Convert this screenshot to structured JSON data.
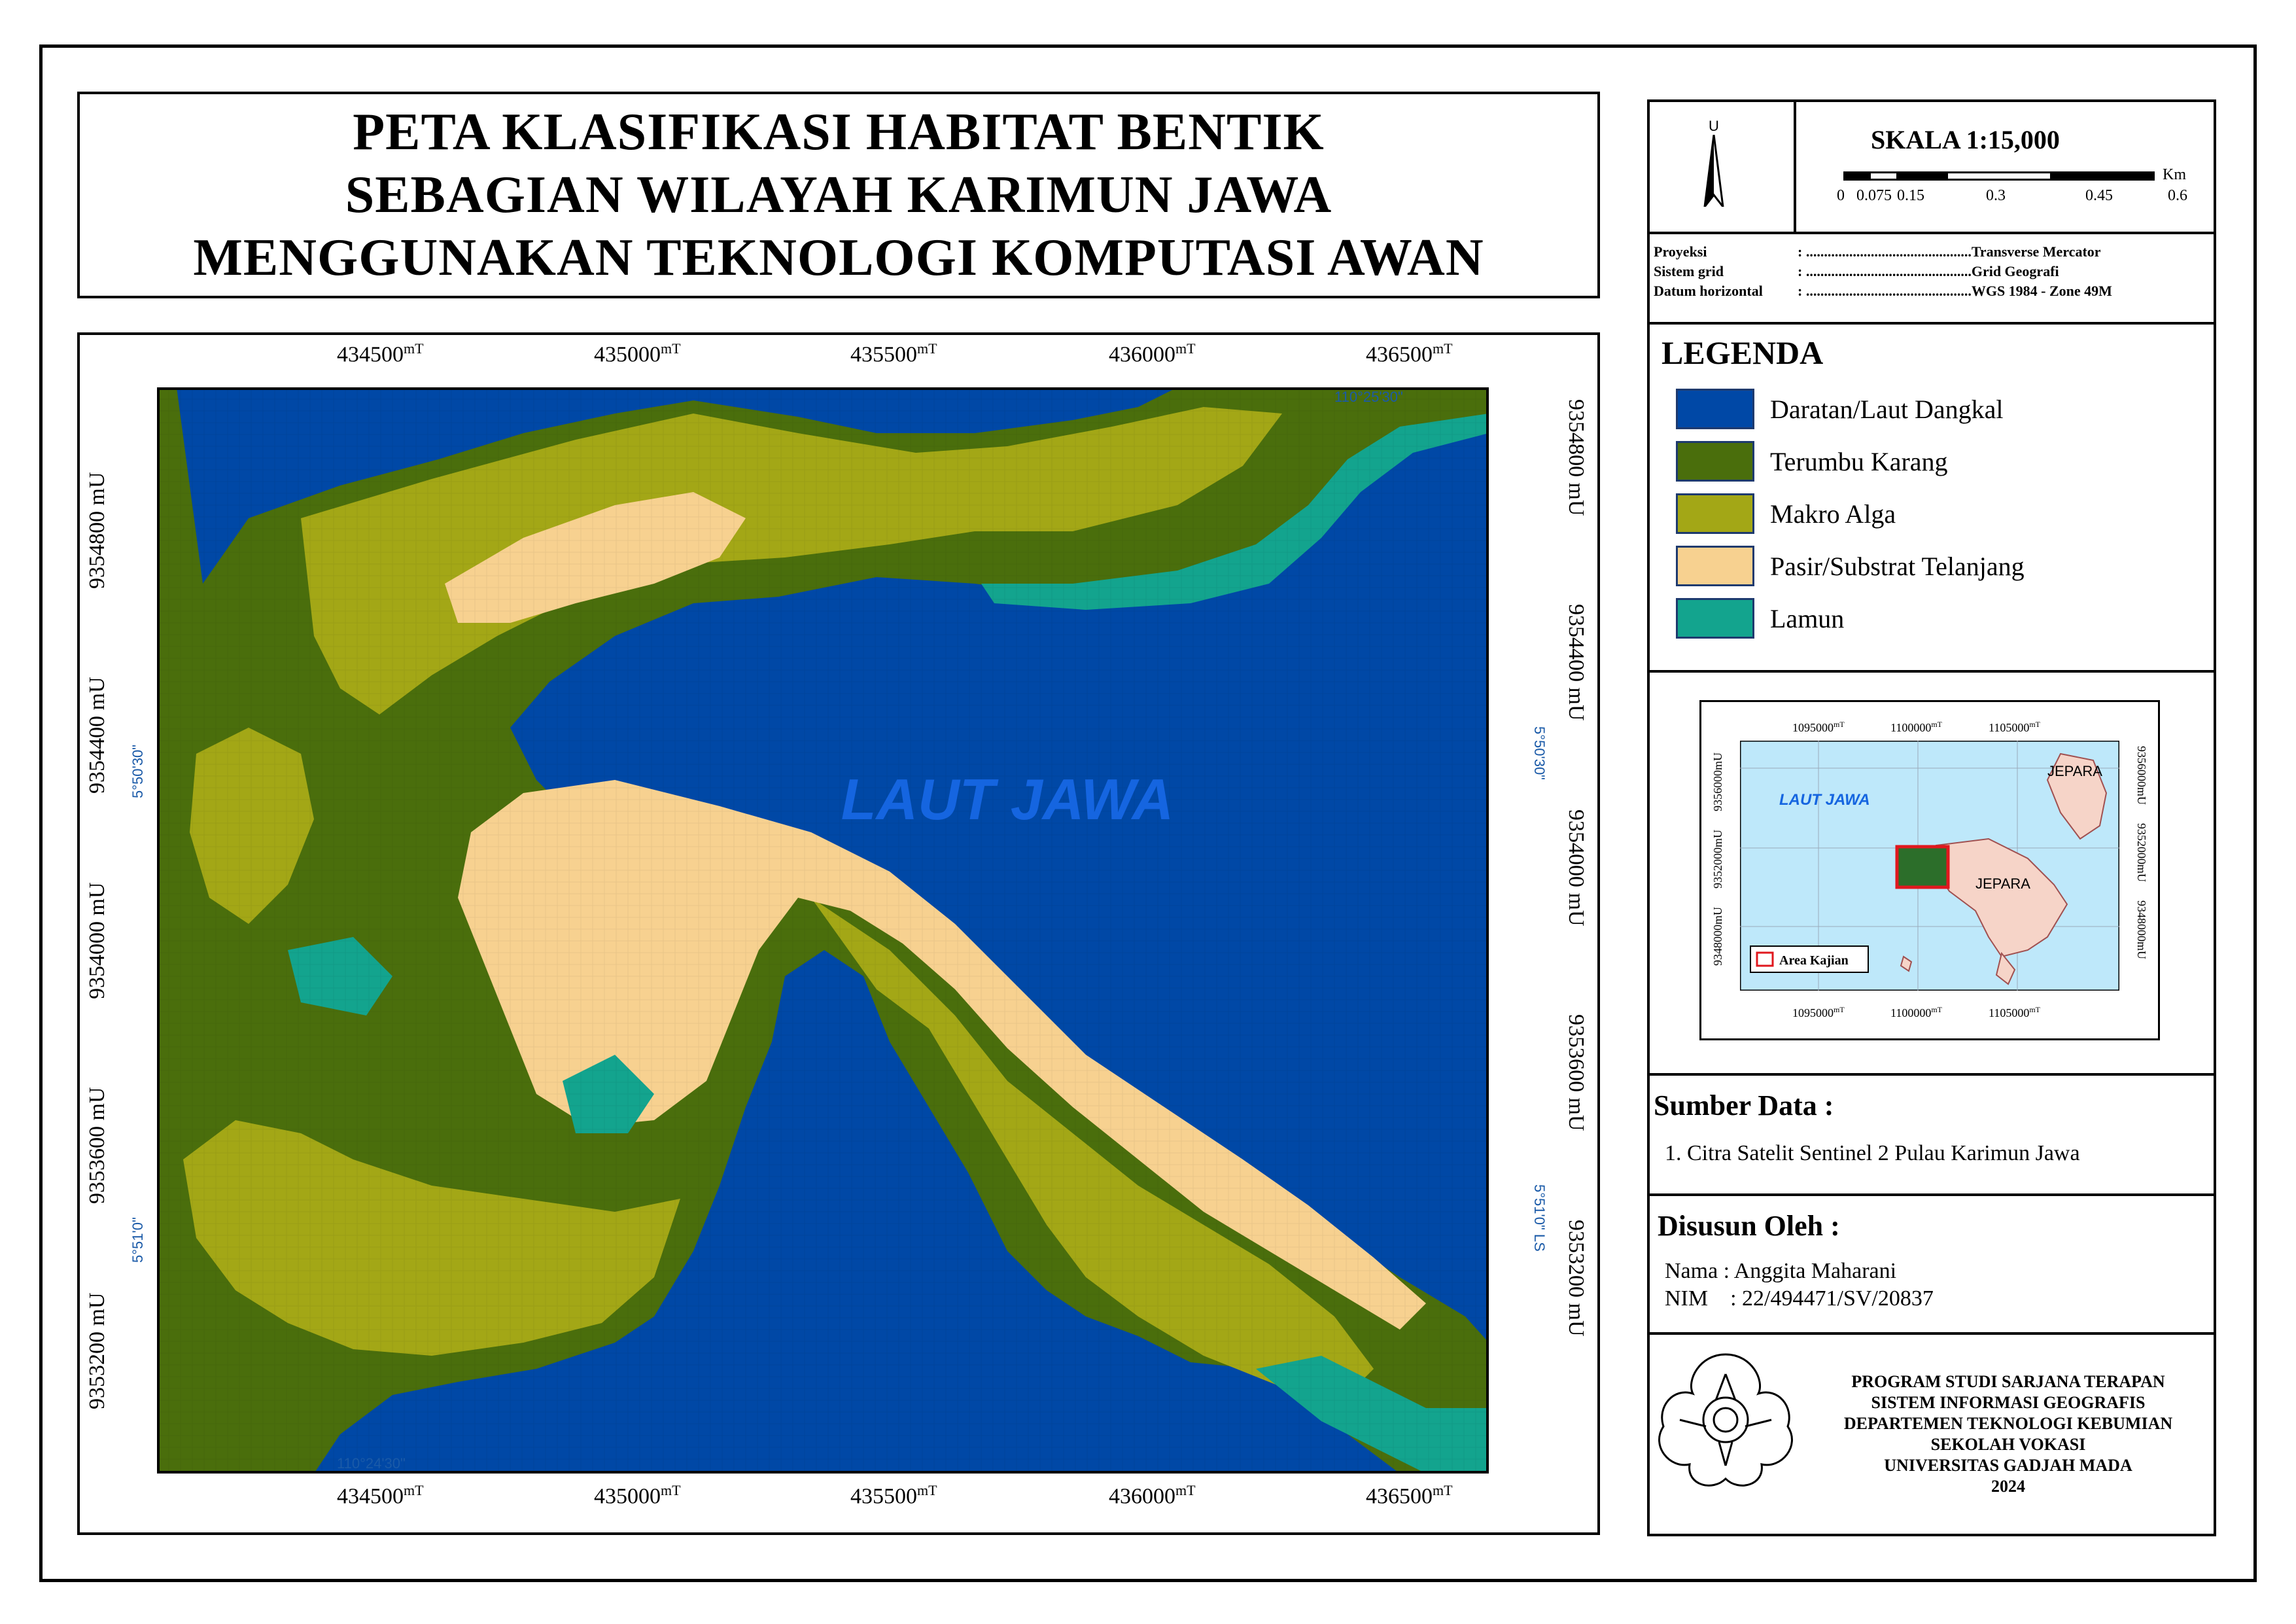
{
  "title": {
    "line1": "PETA KLASIFIKASI HABITAT BENTIK",
    "line2": "SEBAGIAN WILAYAH KARIMUN JAWA",
    "line3": "MENGGUNAKAN TEKNOLOGI KOMPUTASI AWAN"
  },
  "map": {
    "sea_label": "LAUT JAWA",
    "x_ticks": [
      "434500",
      "435000",
      "435500",
      "436000",
      "436500"
    ],
    "x_unit": "mT",
    "y_ticks": [
      "9354800",
      "9354400",
      "9354000",
      "9353600",
      "9353200"
    ],
    "y_unit": "mU",
    "geo_labels": {
      "top_right": "110°25'30\"",
      "bottom_left": "110°24'30\"",
      "left_upper": "5°50'30\"",
      "left_lower": "5°51'0\"",
      "right_upper": "5°50'30\"",
      "right_lower": "5°51'0\" LS"
    },
    "colors": {
      "sea": "#0048A6",
      "reef": "#4A6E0C",
      "algae": "#A3A716",
      "sand": "#F7D190",
      "seagrass": "#13A48E"
    }
  },
  "north_arrow": {
    "label": "U"
  },
  "scale": {
    "title": "SKALA  1:15,000",
    "unit": "Km",
    "ticks": [
      "0",
      "0.075",
      "0.15",
      "0.3",
      "0.45",
      "0.6"
    ]
  },
  "projection": {
    "rows": [
      {
        "label": "Proyeksi",
        "value": "Transverse Mercator"
      },
      {
        "label": "Sistem grid",
        "value": "Grid Geografi"
      },
      {
        "label": "Datum horizontal",
        "value": "WGS 1984 - Zone 49M"
      }
    ]
  },
  "legend": {
    "title": "LEGENDA",
    "items": [
      {
        "label": "Daratan/Laut Dangkal",
        "color": "#0048A6"
      },
      {
        "label": "Terumbu Karang",
        "color": "#4A6E0C"
      },
      {
        "label": "Makro Alga",
        "color": "#A3A716"
      },
      {
        "label": "Pasir/Substrat Telanjang",
        "color": "#F7D190"
      },
      {
        "label": "Lamun",
        "color": "#13A48E"
      }
    ]
  },
  "inset": {
    "x_ticks": [
      "1095000",
      "1100000",
      "1105000"
    ],
    "x_unit": "mT",
    "y_ticks": [
      "9356000",
      "9352000",
      "9348000"
    ],
    "y_unit": "mU",
    "sea_label": "LAUT JAWA",
    "place1": "JEPARA",
    "place2": "JEPARA",
    "legend_label": "Area Kajian",
    "sea_color": "#BEE8FA",
    "land_color": "#F6D4C8",
    "box_color": "#E0181E"
  },
  "source": {
    "title": "Sumber Data :",
    "items": [
      "1. Citra Satelit Sentinel 2 Pulau Karimun Jawa"
    ]
  },
  "author": {
    "title": "Disusun Oleh :",
    "name_line": "Nama : Anggita Maharani",
    "nim_line": "NIM    : 22/494471/SV/20837"
  },
  "institution": {
    "lines": [
      "PROGRAM STUDI SARJANA TERAPAN",
      "SISTEM INFORMASI GEOGRAFIS",
      "DEPARTEMEN TEKNOLOGI KEBUMIAN",
      "SEKOLAH VOKASI",
      "UNIVERSITAS GADJAH MADA",
      "2024"
    ],
    "logo_icon": "ugm-seal-icon"
  }
}
